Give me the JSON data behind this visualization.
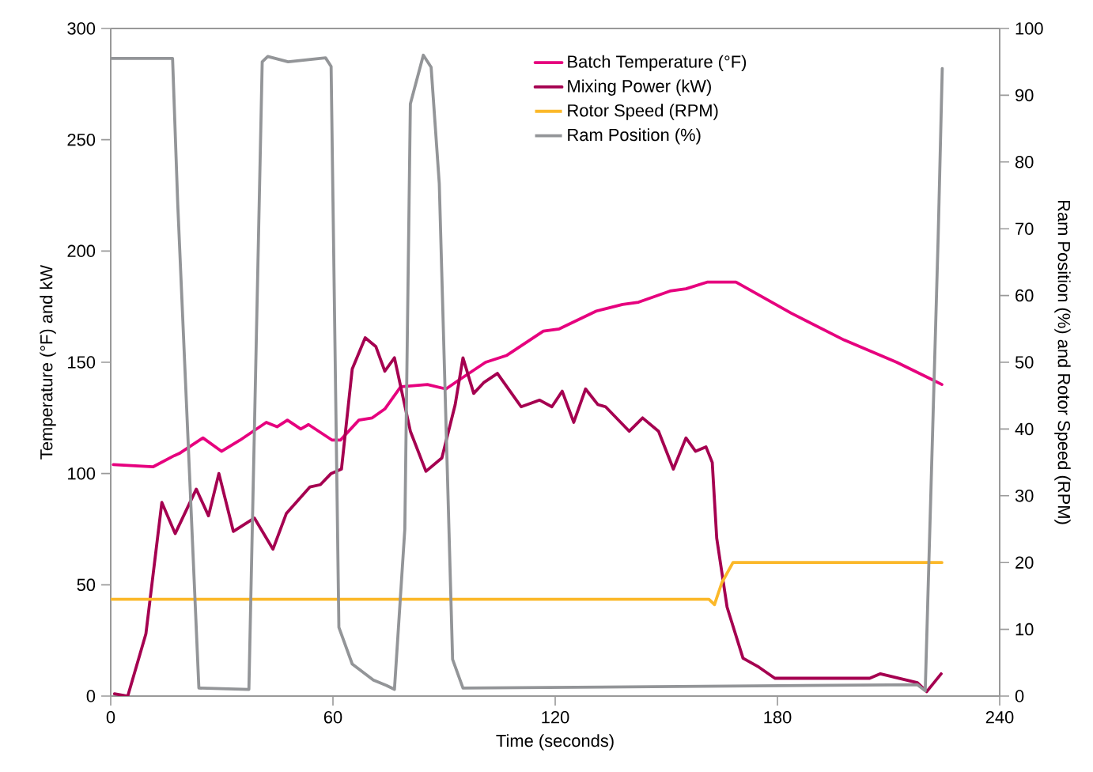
{
  "chart_data": {
    "type": "line",
    "xlabel": "Time (seconds)",
    "ylabel": "Temperature (°F) and kW",
    "y2label": "Ram Position (%) and Rotor Speed (RPM)",
    "xlim": [
      0,
      240
    ],
    "xticks": [
      0,
      60,
      120,
      180,
      240
    ],
    "ylim": [
      0,
      300
    ],
    "yticks": [
      0,
      50,
      100,
      150,
      200,
      250,
      300
    ],
    "y2lim": [
      0,
      100
    ],
    "y2ticks": [
      0,
      10,
      20,
      30,
      40,
      50,
      60,
      70,
      80,
      90,
      100
    ],
    "grid": false,
    "legend": "top right",
    "marker": "none",
    "line_style": "solid",
    "series": [
      {
        "name": "Batch Temperature (°F)",
        "color": "#e6007e",
        "x": [
          0.7,
          11.4,
          17.1,
          18.5,
          24.9,
          29.9,
          34.9,
          42,
          44.9,
          47.7,
          51.3,
          53.4,
          59.8,
          62,
          67,
          70.6,
          74,
          78.3,
          85.5,
          90.5,
          94,
          101.2,
          106.8,
          116.8,
          121.1,
          131.1,
          138.2,
          142.5,
          151,
          155.3,
          161,
          166.7,
          168.8,
          183.8,
          198,
          212.2,
          220.8,
          224.4
        ],
        "values": [
          104,
          103,
          108,
          109,
          116,
          110,
          115,
          123,
          121,
          124,
          120,
          122,
          115,
          115,
          124,
          125,
          129,
          139,
          140,
          138,
          142,
          150,
          153,
          164,
          165,
          173,
          176,
          177,
          182,
          183,
          186,
          186,
          186,
          172,
          160,
          150,
          143,
          140
        ]
      },
      {
        "name": "Mixing Power (kW)",
        "color": "#a50050",
        "x": [
          1,
          4.6,
          9.5,
          13.8,
          17.4,
          23.1,
          26.4,
          29.2,
          33.1,
          38.8,
          43.8,
          47.4,
          53.8,
          56.6,
          59.5,
          62.3,
          65.2,
          68.7,
          71.6,
          74,
          76.6,
          80.9,
          85.1,
          89.4,
          93,
          95.1,
          98,
          100.8,
          104.4,
          110.8,
          115.8,
          119.1,
          121.9,
          125,
          128.2,
          131.5,
          133.6,
          140,
          143.6,
          147.9,
          151.9,
          155.3,
          157.9,
          160.7,
          162.4,
          163.6,
          166.4,
          170.7,
          175,
          179.3,
          204.9,
          207.8,
          217.8,
          220.3,
          224.2
        ],
        "values": [
          1,
          0,
          28,
          87,
          73,
          93,
          81,
          100,
          74,
          80,
          66,
          82,
          94,
          95,
          100,
          102,
          147,
          161,
          157,
          146,
          152,
          119,
          101,
          107,
          131,
          152,
          136,
          141,
          145,
          130,
          133,
          130,
          137,
          123,
          138,
          131,
          130,
          119,
          125,
          119,
          102,
          116,
          110,
          112,
          105,
          71,
          40,
          17,
          13,
          8,
          8,
          10,
          6,
          2,
          10
        ]
      },
      {
        "name": "Rotor Speed (RPM)",
        "color": "#fbb829",
        "axis": "y2",
        "x": [
          0,
          160,
          161.5,
          163,
          165,
          168,
          224.4
        ],
        "values": [
          14.5,
          14.5,
          14.5,
          13.7,
          17,
          20,
          20
        ]
      },
      {
        "name": "Ram Position (%)",
        "color": "#939598",
        "axis": "y2",
        "x": [
          0,
          16.7,
          18.1,
          23.8,
          37.3,
          40.9,
          42.4,
          47.9,
          58,
          59.5,
          61.6,
          65.2,
          70.9,
          74.4,
          76.6,
          79.4,
          80.9,
          84.4,
          86.5,
          88.7,
          92.3,
          95.1,
          217.8,
          219.9,
          223.4,
          224.5
        ],
        "values": [
          95.5,
          95.5,
          73.6,
          1.2,
          1,
          95,
          95.8,
          95,
          95.6,
          94.3,
          10.3,
          4.8,
          2.4,
          1.6,
          1,
          25,
          88.7,
          96,
          94.2,
          76.8,
          5.5,
          1.2,
          1.7,
          0.8,
          68.9,
          94
        ]
      }
    ]
  }
}
